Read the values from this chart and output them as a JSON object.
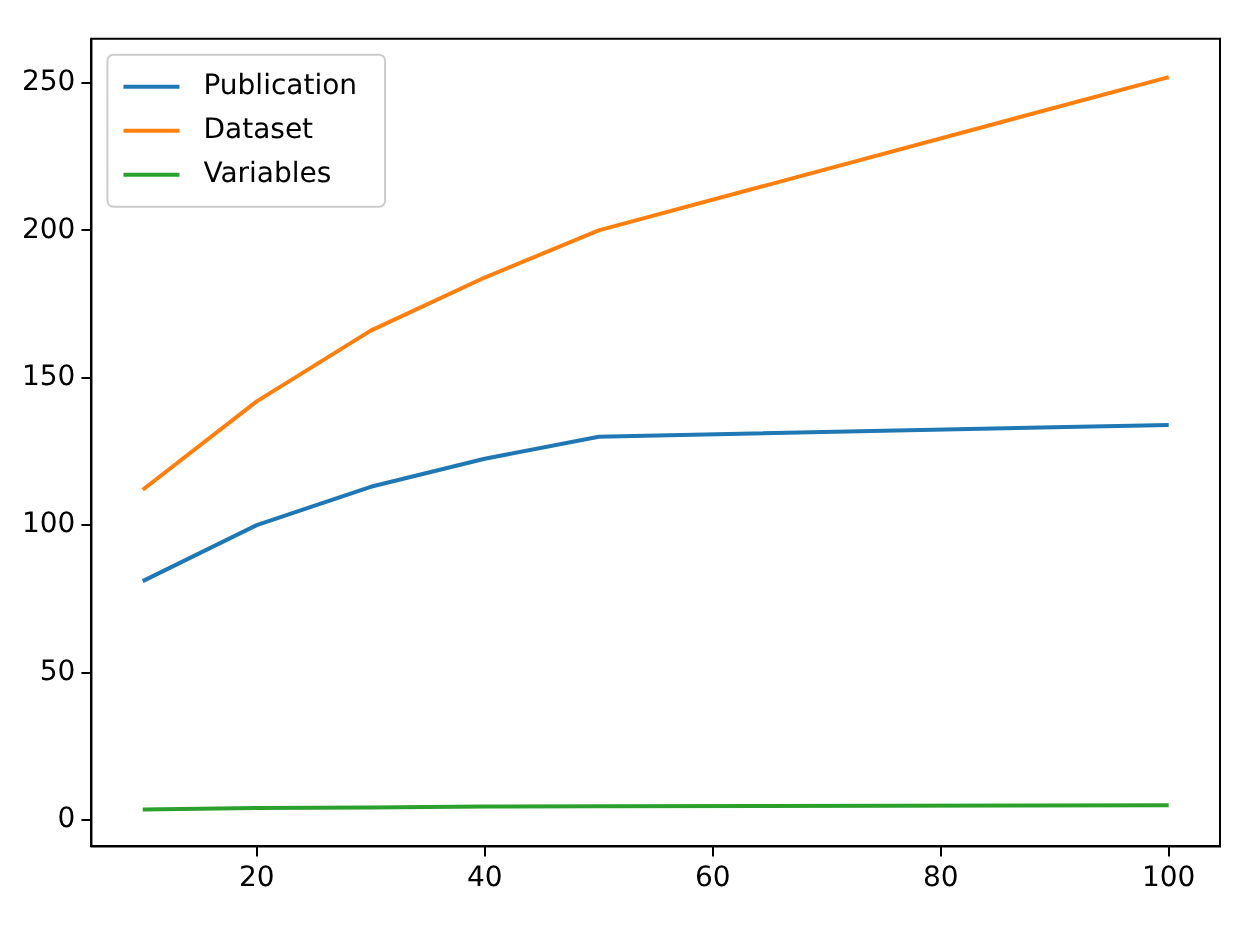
{
  "chart_data": {
    "type": "line",
    "x": [
      10,
      20,
      30,
      40,
      50,
      100
    ],
    "series": [
      {
        "name": "Publication",
        "color": "#1f77b4",
        "values": [
          81,
          100,
          113,
          122.5,
          130,
          134
        ]
      },
      {
        "name": "Dataset",
        "color": "#ff7f0e",
        "values": [
          112,
          142,
          166,
          184,
          200,
          252
        ]
      },
      {
        "name": "Variables",
        "color": "#2ca02c",
        "values": [
          3.5,
          4,
          4.2,
          4.5,
          4.6,
          5
        ]
      }
    ],
    "xlim": [
      5.5,
      104.5
    ],
    "xticks": [
      20,
      40,
      60,
      80,
      100
    ],
    "ylim": [
      -9,
      265
    ],
    "yticks": [
      0,
      50,
      100,
      150,
      200,
      250
    ],
    "grid": false,
    "legend": "top left",
    "marker": "none",
    "line_style": "solid"
  }
}
